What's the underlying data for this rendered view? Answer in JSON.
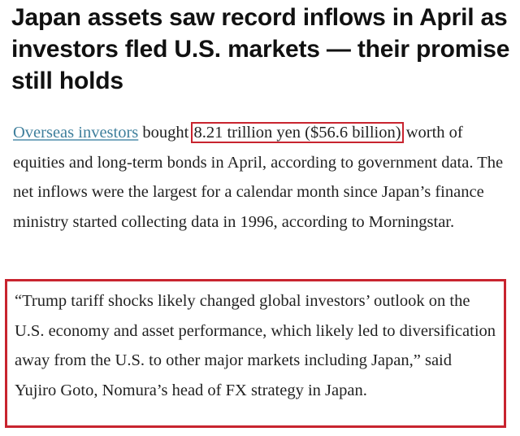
{
  "article": {
    "headline": "Japan assets saw record inflows in April as investors fled U.S. markets — their promise still holds",
    "paragraph": {
      "link_text": "Overseas investors",
      "before_highlight": " bought ",
      "highlight": "8.21 trillion yen ($56.6 billion)",
      "after_highlight": " worth of equities and long-term bonds in April, according to government data. The net inflows were the largest for a calendar month since Japan’s finance ministry started collecting data in 1996, according to Morningstar."
    },
    "quote": "“Trump tariff shocks likely changed global investors’ outlook on the U.S. economy and asset performance, which likely led to diversification away from the U.S. to other major markets including Japan,” said Yujiro Goto, Nomura’s head of FX strategy in Japan."
  },
  "colors": {
    "highlight_box": "#c8242f",
    "link": "#3f7f9c"
  }
}
